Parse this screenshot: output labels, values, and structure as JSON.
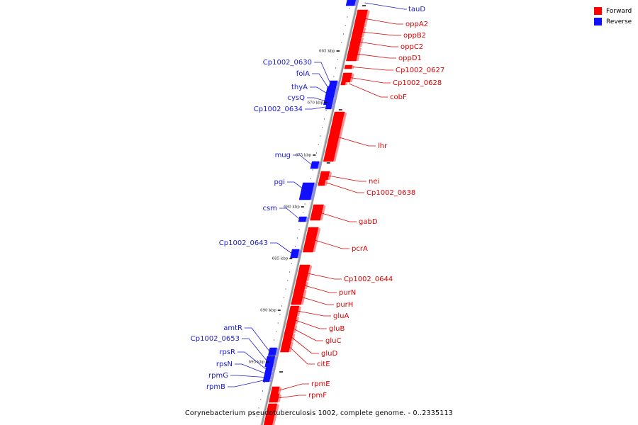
{
  "title": "Corynebacterium pseudotuberculosis 1002, complete genome. - 0..2335113",
  "colors": {
    "forward": "#ff0000",
    "reverse": "#1010ff",
    "forward_line": "#dd0000",
    "reverse_line": "#1a1ad0",
    "backbone": "#888888"
  },
  "legend": [
    {
      "label": "Forward",
      "color": "#ff0000"
    },
    {
      "label": "Reverse",
      "color": "#1010ff"
    }
  ],
  "kbp_markers": [
    "665 kbp",
    "670 kbp",
    "675 kbp",
    "680 kbp",
    "685 kbp",
    "690 kbp",
    "695 kbp"
  ],
  "forward_genes": [
    "oppA2",
    "oppB2",
    "oppC2",
    "oppD1",
    "Cp1002_0627",
    "Cp1002_0628",
    "cobF",
    "lhr",
    "nei",
    "Cp1002_0638",
    "gabD",
    "pcrA",
    "Cp1002_0644",
    "purN",
    "purH",
    "gluA",
    "gluB",
    "gluC",
    "gluD",
    "citE",
    "rpmE",
    "rpmF"
  ],
  "reverse_genes": [
    "tauD",
    "Cp1002_0630",
    "folA",
    "thyA",
    "cysQ",
    "Cp1002_0634",
    "mug",
    "pgi",
    "csm",
    "Cp1002_0643",
    "amtR",
    "Cp1002_0653",
    "rpsR",
    "rpsN",
    "rpmG",
    "rpmB"
  ]
}
